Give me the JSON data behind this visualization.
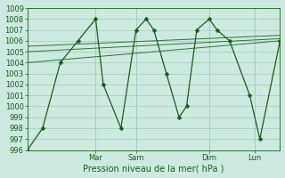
{
  "bg_color": "#cceae0",
  "grid_color": "#aacfbf",
  "line_color": "#1a5c1a",
  "ylabel": "Pression niveau de la mer( hPa )",
  "ylim": [
    996,
    1009
  ],
  "xlim": [
    0,
    1.0
  ],
  "series1": {
    "x": [
      0.0,
      0.06,
      0.13,
      0.2,
      0.27,
      0.3,
      0.37,
      0.43,
      0.47,
      0.5,
      0.55,
      0.6,
      0.63,
      0.67,
      0.72,
      0.75,
      0.8,
      0.88,
      0.92,
      1.0
    ],
    "y": [
      996,
      998,
      1004,
      1006,
      1008,
      1002,
      998,
      1007,
      1008,
      1007,
      1003,
      999,
      1000,
      1007,
      1008,
      1007,
      1006,
      1001,
      997,
      1006
    ]
  },
  "trend1": {
    "x": [
      0.0,
      1.0
    ],
    "y": [
      1004.0,
      1006.0
    ]
  },
  "trend2": {
    "x": [
      0.0,
      1.0
    ],
    "y": [
      1005.0,
      1006.2
    ]
  },
  "trend3": {
    "x": [
      0.0,
      1.0
    ],
    "y": [
      1005.5,
      1006.5
    ]
  },
  "xtick_positions": [
    0.27,
    0.43,
    0.72,
    0.9
  ],
  "xtick_labels": [
    "Mar",
    "Sam",
    "Dim",
    "Lun"
  ],
  "title_fontsize": 7,
  "tick_fontsize": 6
}
